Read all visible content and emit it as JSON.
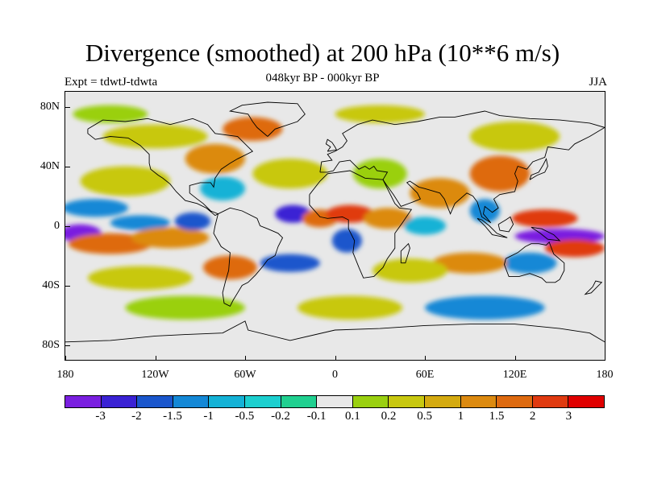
{
  "title": "Divergence (smoothed) at 200 hPa (10**6 m/s)",
  "subtitle": "048kyr BP - 000kyr BP",
  "left_label": "Expt = tdwtJ-tdwta",
  "right_label": "JJA",
  "map": {
    "lon_range": [
      -180,
      180
    ],
    "lat_range": [
      -90,
      90
    ],
    "projection": "cylindrical equidistant",
    "y_ticks": [
      {
        "label": "80N",
        "lat": 80
      },
      {
        "label": "40N",
        "lat": 40
      },
      {
        "label": "0",
        "lat": 0
      },
      {
        "label": "40S",
        "lat": -40
      },
      {
        "label": "80S",
        "lat": -80
      }
    ],
    "x_ticks": [
      {
        "label": "180",
        "lon": -180
      },
      {
        "label": "120W",
        "lon": -120
      },
      {
        "label": "60W",
        "lon": -60
      },
      {
        "label": "0",
        "lon": 0
      },
      {
        "label": "60E",
        "lon": 60
      },
      {
        "label": "120E",
        "lon": 120
      },
      {
        "label": "180",
        "lon": 180
      }
    ]
  },
  "colorbar": {
    "colors": [
      "#7a1fe0",
      "#3a22d4",
      "#1a56cc",
      "#1488d6",
      "#14b2d6",
      "#1ccfcf",
      "#20d090",
      "#e8e8e8",
      "#9ad010",
      "#c8c810",
      "#d4aa10",
      "#dc8a10",
      "#de6a10",
      "#e03a10",
      "#e00000"
    ],
    "labels": [
      "-3",
      "-2",
      "-1.5",
      "-1",
      "-0.5",
      "-0.2",
      "-0.1",
      "0.1",
      "0.2",
      "0.5",
      "1",
      "1.5",
      "2",
      "3"
    ]
  },
  "field_blobs": [
    {
      "lon": -170,
      "lat": -5,
      "rx": 14,
      "ry": 6,
      "level": 0
    },
    {
      "lon": -160,
      "lat": 12,
      "rx": 22,
      "ry": 6,
      "level": 3
    },
    {
      "lon": -150,
      "lat": -12,
      "rx": 28,
      "ry": 7,
      "level": 12
    },
    {
      "lon": -130,
      "lat": 2,
      "rx": 20,
      "ry": 5,
      "level": 3
    },
    {
      "lon": -110,
      "lat": -8,
      "rx": 26,
      "ry": 7,
      "level": 11
    },
    {
      "lon": -95,
      "lat": 3,
      "rx": 12,
      "ry": 6,
      "level": 2
    },
    {
      "lon": -140,
      "lat": 30,
      "rx": 30,
      "ry": 10,
      "level": 9
    },
    {
      "lon": -120,
      "lat": 60,
      "rx": 35,
      "ry": 8,
      "level": 9
    },
    {
      "lon": -80,
      "lat": 45,
      "rx": 20,
      "ry": 10,
      "level": 11
    },
    {
      "lon": -75,
      "lat": 25,
      "rx": 15,
      "ry": 8,
      "level": 4
    },
    {
      "lon": -55,
      "lat": 65,
      "rx": 20,
      "ry": 8,
      "level": 12
    },
    {
      "lon": -30,
      "lat": 35,
      "rx": 25,
      "ry": 10,
      "level": 9
    },
    {
      "lon": -28,
      "lat": 8,
      "rx": 12,
      "ry": 6,
      "level": 1
    },
    {
      "lon": -10,
      "lat": 5,
      "rx": 12,
      "ry": 6,
      "level": 12
    },
    {
      "lon": 10,
      "lat": 8,
      "rx": 16,
      "ry": 6,
      "level": 13
    },
    {
      "lon": 8,
      "lat": -10,
      "rx": 10,
      "ry": 8,
      "level": 2
    },
    {
      "lon": 35,
      "lat": 5,
      "rx": 16,
      "ry": 7,
      "level": 11
    },
    {
      "lon": 30,
      "lat": 35,
      "rx": 18,
      "ry": 10,
      "level": 8
    },
    {
      "lon": 70,
      "lat": 22,
      "rx": 20,
      "ry": 10,
      "level": 11
    },
    {
      "lon": 60,
      "lat": 0,
      "rx": 14,
      "ry": 6,
      "level": 4
    },
    {
      "lon": 110,
      "lat": 35,
      "rx": 20,
      "ry": 12,
      "level": 12
    },
    {
      "lon": 100,
      "lat": 10,
      "rx": 10,
      "ry": 8,
      "level": 3
    },
    {
      "lon": 120,
      "lat": 60,
      "rx": 30,
      "ry": 10,
      "level": 9
    },
    {
      "lon": 140,
      "lat": 5,
      "rx": 22,
      "ry": 6,
      "level": 13
    },
    {
      "lon": 150,
      "lat": -7,
      "rx": 30,
      "ry": 5,
      "level": 0
    },
    {
      "lon": 160,
      "lat": -15,
      "rx": 20,
      "ry": 6,
      "level": 13
    },
    {
      "lon": 130,
      "lat": -25,
      "rx": 18,
      "ry": 7,
      "level": 3
    },
    {
      "lon": 90,
      "lat": -25,
      "rx": 25,
      "ry": 7,
      "level": 11
    },
    {
      "lon": 50,
      "lat": -30,
      "rx": 25,
      "ry": 8,
      "level": 9
    },
    {
      "lon": -30,
      "lat": -25,
      "rx": 20,
      "ry": 6,
      "level": 2
    },
    {
      "lon": -70,
      "lat": -28,
      "rx": 18,
      "ry": 8,
      "level": 12
    },
    {
      "lon": -130,
      "lat": -35,
      "rx": 35,
      "ry": 8,
      "level": 9
    },
    {
      "lon": -100,
      "lat": -55,
      "rx": 40,
      "ry": 8,
      "level": 8
    },
    {
      "lon": 10,
      "lat": -55,
      "rx": 35,
      "ry": 8,
      "level": 9
    },
    {
      "lon": 100,
      "lat": -55,
      "rx": 40,
      "ry": 8,
      "level": 3
    },
    {
      "lon": -150,
      "lat": 75,
      "rx": 25,
      "ry": 6,
      "level": 8
    },
    {
      "lon": 30,
      "lat": 75,
      "rx": 30,
      "ry": 6,
      "level": 9
    }
  ],
  "coastlines": [
    {
      "name": "north-america",
      "points": [
        [
          -165,
          65
        ],
        [
          -155,
          71
        ],
        [
          -140,
          70
        ],
        [
          -125,
          72
        ],
        [
          -110,
          68
        ],
        [
          -95,
          72
        ],
        [
          -85,
          68
        ],
        [
          -80,
          62
        ],
        [
          -65,
          60
        ],
        [
          -60,
          55
        ],
        [
          -55,
          50
        ],
        [
          -65,
          45
        ],
        [
          -70,
          42
        ],
        [
          -76,
          38
        ],
        [
          -80,
          32
        ],
        [
          -81,
          26
        ],
        [
          -83,
          29
        ],
        [
          -90,
          29
        ],
        [
          -97,
          27
        ],
        [
          -97,
          22
        ],
        [
          -92,
          18
        ],
        [
          -88,
          15
        ],
        [
          -83,
          10
        ],
        [
          -78,
          8
        ],
        [
          -80,
          7
        ],
        [
          -86,
          12
        ],
        [
          -92,
          15
        ],
        [
          -100,
          17
        ],
        [
          -106,
          23
        ],
        [
          -110,
          28
        ],
        [
          -115,
          32
        ],
        [
          -118,
          34
        ],
        [
          -123,
          38
        ],
        [
          -124,
          42
        ],
        [
          -124,
          48
        ],
        [
          -130,
          54
        ],
        [
          -138,
          59
        ],
        [
          -150,
          60
        ],
        [
          -160,
          58
        ],
        [
          -165,
          62
        ],
        [
          -165,
          65
        ]
      ]
    },
    {
      "name": "south-america",
      "points": [
        [
          -78,
          8
        ],
        [
          -70,
          12
        ],
        [
          -62,
          10
        ],
        [
          -52,
          5
        ],
        [
          -50,
          0
        ],
        [
          -45,
          -2
        ],
        [
          -38,
          -5
        ],
        [
          -35,
          -8
        ],
        [
          -38,
          -14
        ],
        [
          -40,
          -20
        ],
        [
          -45,
          -23
        ],
        [
          -48,
          -27
        ],
        [
          -53,
          -33
        ],
        [
          -58,
          -38
        ],
        [
          -62,
          -40
        ],
        [
          -65,
          -45
        ],
        [
          -68,
          -50
        ],
        [
          -70,
          -54
        ],
        [
          -74,
          -52
        ],
        [
          -75,
          -45
        ],
        [
          -73,
          -37
        ],
        [
          -71,
          -30
        ],
        [
          -70,
          -18
        ],
        [
          -76,
          -14
        ],
        [
          -81,
          -5
        ],
        [
          -80,
          0
        ],
        [
          -78,
          8
        ]
      ]
    },
    {
      "name": "africa",
      "points": [
        [
          -17,
          21
        ],
        [
          -10,
          30
        ],
        [
          -5,
          35
        ],
        [
          10,
          37
        ],
        [
          20,
          32
        ],
        [
          32,
          31
        ],
        [
          35,
          25
        ],
        [
          40,
          15
        ],
        [
          43,
          12
        ],
        [
          51,
          11
        ],
        [
          45,
          2
        ],
        [
          40,
          -5
        ],
        [
          40,
          -15
        ],
        [
          35,
          -22
        ],
        [
          32,
          -28
        ],
        [
          26,
          -34
        ],
        [
          19,
          -35
        ],
        [
          16,
          -28
        ],
        [
          12,
          -18
        ],
        [
          13,
          -10
        ],
        [
          9,
          -2
        ],
        [
          9,
          4
        ],
        [
          5,
          6
        ],
        [
          -5,
          5
        ],
        [
          -10,
          6
        ],
        [
          -17,
          14
        ],
        [
          -17,
          21
        ]
      ]
    },
    {
      "name": "eurasia",
      "points": [
        [
          -10,
          36
        ],
        [
          -9,
          43
        ],
        [
          -2,
          44
        ],
        [
          -5,
          48
        ],
        [
          0,
          50
        ],
        [
          5,
          53
        ],
        [
          8,
          57
        ],
        [
          5,
          62
        ],
        [
          15,
          68
        ],
        [
          25,
          71
        ],
        [
          40,
          68
        ],
        [
          55,
          70
        ],
        [
          70,
          73
        ],
        [
          80,
          73
        ],
        [
          100,
          77
        ],
        [
          110,
          74
        ],
        [
          130,
          72
        ],
        [
          150,
          71
        ],
        [
          170,
          69
        ],
        [
          180,
          66
        ],
        [
          170,
          60
        ],
        [
          160,
          55
        ],
        [
          156,
          51
        ],
        [
          142,
          53
        ],
        [
          140,
          46
        ],
        [
          132,
          43
        ],
        [
          128,
          38
        ],
        [
          122,
          40
        ],
        [
          120,
          35
        ],
        [
          122,
          30
        ],
        [
          120,
          23
        ],
        [
          110,
          21
        ],
        [
          106,
          18
        ],
        [
          109,
          12
        ],
        [
          105,
          9
        ],
        [
          100,
          13
        ],
        [
          99,
          8
        ],
        [
          104,
          2
        ],
        [
          98,
          6
        ],
        [
          95,
          16
        ],
        [
          92,
          20
        ],
        [
          88,
          22
        ],
        [
          80,
          15
        ],
        [
          77,
          8
        ],
        [
          73,
          18
        ],
        [
          70,
          22
        ],
        [
          60,
          25
        ],
        [
          56,
          26
        ],
        [
          50,
          30
        ],
        [
          48,
          29
        ],
        [
          55,
          22
        ],
        [
          57,
          18
        ],
        [
          52,
          16
        ],
        [
          44,
          13
        ],
        [
          39,
          21
        ],
        [
          34,
          28
        ],
        [
          32,
          31
        ],
        [
          35,
          36
        ],
        [
          28,
          37
        ],
        [
          26,
          40
        ],
        [
          23,
          38
        ],
        [
          20,
          40
        ],
        [
          16,
          38
        ],
        [
          12,
          42
        ],
        [
          10,
          44
        ],
        [
          3,
          43
        ],
        [
          -1,
          37
        ],
        [
          -5,
          36
        ],
        [
          -10,
          36
        ]
      ]
    },
    {
      "name": "australia",
      "points": [
        [
          114,
          -22
        ],
        [
          113,
          -26
        ],
        [
          116,
          -34
        ],
        [
          123,
          -34
        ],
        [
          130,
          -32
        ],
        [
          138,
          -35
        ],
        [
          141,
          -38
        ],
        [
          147,
          -38
        ],
        [
          150,
          -36
        ],
        [
          153,
          -30
        ],
        [
          153,
          -25
        ],
        [
          146,
          -19
        ],
        [
          143,
          -11
        ],
        [
          141,
          -13
        ],
        [
          136,
          -12
        ],
        [
          131,
          -12
        ],
        [
          127,
          -14
        ],
        [
          122,
          -18
        ],
        [
          114,
          -22
        ]
      ]
    },
    {
      "name": "greenland",
      "points": [
        [
          -45,
          60
        ],
        [
          -40,
          65
        ],
        [
          -25,
          70
        ],
        [
          -20,
          75
        ],
        [
          -25,
          82
        ],
        [
          -45,
          83
        ],
        [
          -62,
          81
        ],
        [
          -70,
          77
        ],
        [
          -58,
          75
        ],
        [
          -55,
          70
        ],
        [
          -52,
          66
        ],
        [
          -45,
          60
        ]
      ]
    },
    {
      "name": "antarctica",
      "points": [
        [
          -180,
          -78
        ],
        [
          -150,
          -77
        ],
        [
          -120,
          -74
        ],
        [
          -100,
          -73
        ],
        [
          -75,
          -72
        ],
        [
          -60,
          -64
        ],
        [
          -58,
          -70
        ],
        [
          -30,
          -77
        ],
        [
          0,
          -70
        ],
        [
          30,
          -69
        ],
        [
          60,
          -67
        ],
        [
          90,
          -66
        ],
        [
          120,
          -66
        ],
        [
          150,
          -69
        ],
        [
          170,
          -72
        ],
        [
          180,
          -78
        ]
      ]
    },
    {
      "name": "indonesia",
      "points": [
        [
          95,
          5
        ],
        [
          100,
          0
        ],
        [
          105,
          -6
        ],
        [
          110,
          -7
        ],
        [
          115,
          -8
        ],
        [
          108,
          -5
        ],
        [
          103,
          0
        ],
        [
          98,
          4
        ],
        [
          95,
          5
        ]
      ]
    },
    {
      "name": "borneo",
      "points": [
        [
          109,
          1
        ],
        [
          110,
          -3
        ],
        [
          116,
          -4
        ],
        [
          119,
          1
        ],
        [
          117,
          6
        ],
        [
          114,
          4
        ],
        [
          109,
          1
        ]
      ]
    },
    {
      "name": "new-guinea",
      "points": [
        [
          131,
          -1
        ],
        [
          138,
          -2
        ],
        [
          146,
          -6
        ],
        [
          150,
          -10
        ],
        [
          142,
          -9
        ],
        [
          137,
          -5
        ],
        [
          131,
          -1
        ]
      ]
    },
    {
      "name": "japan",
      "points": [
        [
          130,
          31
        ],
        [
          135,
          34
        ],
        [
          140,
          36
        ],
        [
          142,
          40
        ],
        [
          141,
          45
        ],
        [
          139,
          41
        ],
        [
          136,
          36
        ],
        [
          131,
          34
        ],
        [
          130,
          31
        ]
      ]
    },
    {
      "name": "uk",
      "points": [
        [
          -5,
          50
        ],
        [
          1,
          51
        ],
        [
          0,
          53
        ],
        [
          -2,
          56
        ],
        [
          -5,
          58
        ],
        [
          -6,
          55
        ],
        [
          -3,
          53
        ],
        [
          -5,
          50
        ]
      ]
    },
    {
      "name": "madagascar",
      "points": [
        [
          44,
          -25
        ],
        [
          47,
          -25
        ],
        [
          50,
          -15
        ],
        [
          49,
          -12
        ],
        [
          44,
          -17
        ],
        [
          44,
          -25
        ]
      ]
    },
    {
      "name": "new-zealand",
      "points": [
        [
          172,
          -41
        ],
        [
          174,
          -37
        ],
        [
          178,
          -38
        ],
        [
          175,
          -41
        ],
        [
          171,
          -45
        ],
        [
          167,
          -46
        ],
        [
          172,
          -41
        ]
      ]
    }
  ]
}
